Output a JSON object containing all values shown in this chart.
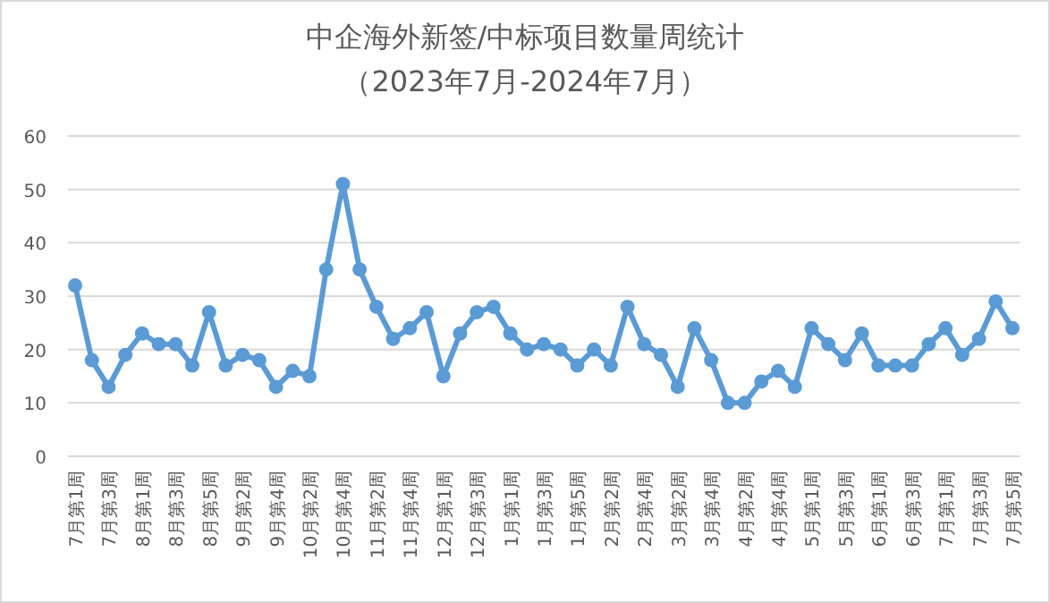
{
  "chart_data": {
    "type": "line",
    "title": "中企海外新签/中标项目数量周统计",
    "subtitle": "（2023年7月-2024年7月）",
    "categories": [
      "7月第1周",
      null,
      "7月第3周",
      null,
      "8月第1周",
      null,
      "8月第3周",
      null,
      "8月第5周",
      null,
      "9月第2周",
      null,
      "9月第4周",
      null,
      "10月第2周",
      null,
      "10月第4周",
      null,
      "11月第2周",
      null,
      "11月第4周",
      null,
      "12月第1周",
      null,
      "12月第3周",
      null,
      "1月第1周",
      null,
      "1月第3周",
      null,
      "1月第5周",
      null,
      "2月第2周",
      null,
      "2月第4周",
      null,
      "3月第2周",
      null,
      "3月第4周",
      null,
      "4月第2周",
      null,
      "4月第4周",
      null,
      "5月第1周",
      null,
      "5月第3周",
      null,
      "6月第1周",
      null,
      "6月第3周",
      null,
      "7月第1周",
      null,
      "7月第3周",
      null,
      "7月第5周"
    ],
    "series": [
      {
        "color": "#5b9bd5",
        "values": [
          32,
          18,
          13,
          19,
          23,
          21,
          21,
          17,
          27,
          17,
          19,
          18,
          13,
          16,
          15,
          35,
          51,
          35,
          28,
          22,
          24,
          27,
          15,
          23,
          27,
          28,
          23,
          20,
          21,
          20,
          17,
          20,
          17,
          28,
          21,
          19,
          13,
          24,
          18,
          10,
          10,
          14,
          16,
          13,
          24,
          21,
          18,
          23,
          17,
          17,
          17,
          21,
          24,
          19,
          22,
          29,
          24
        ]
      }
    ],
    "ylim": [
      0,
      60
    ],
    "yticks": [
      0,
      10,
      20,
      30,
      40,
      50,
      60
    ],
    "grid": "y",
    "marker": "circle",
    "line_style": "solid"
  }
}
